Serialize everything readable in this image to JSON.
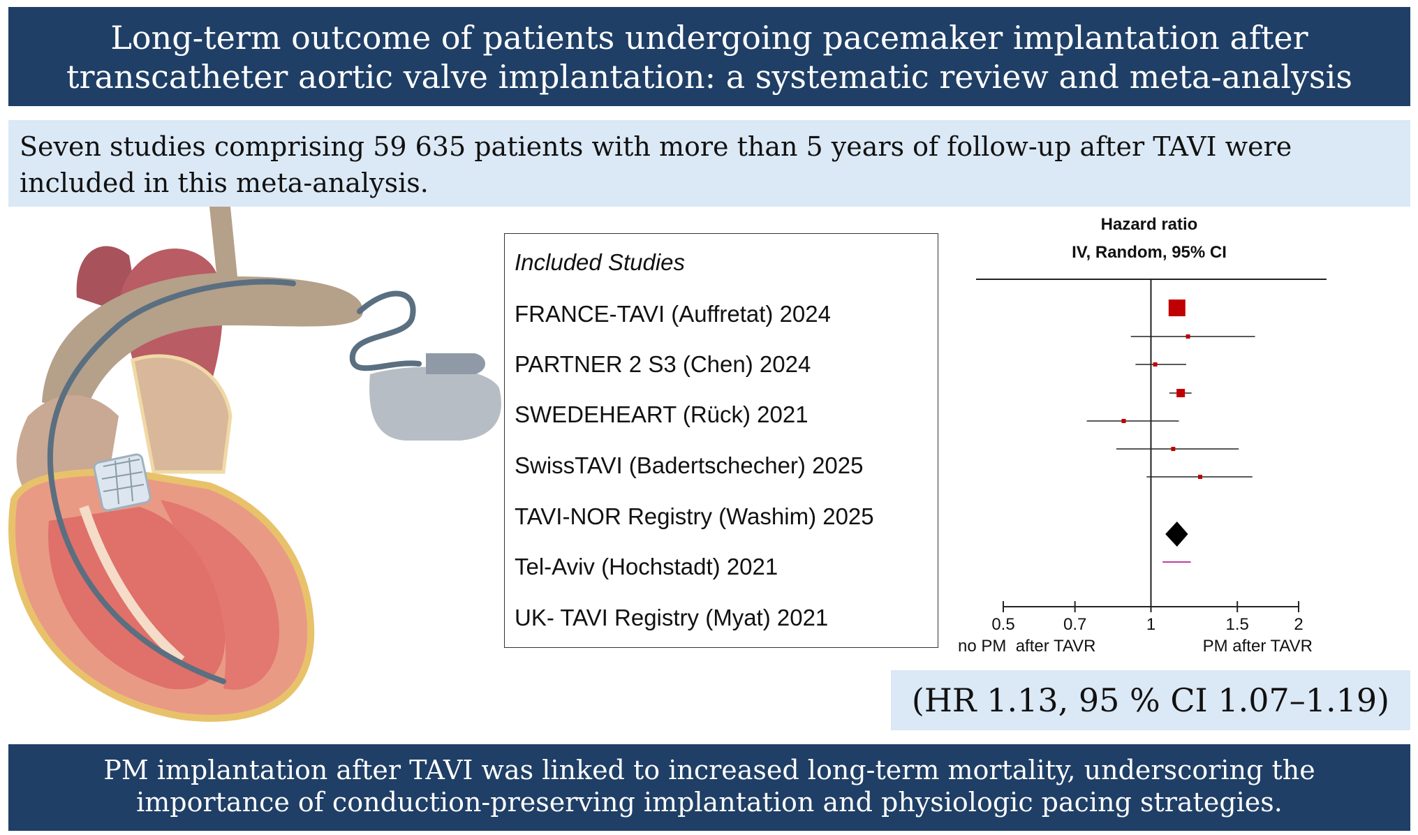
{
  "title": {
    "line1": "Long-term outcome of patients undergoing pacemaker implantation after",
    "line2": "transcatheter aortic valve implantation: a systematic review and meta-analysis"
  },
  "summary": {
    "line1": "Seven studies comprising 59 635 patients with more than 5 years of follow-up after TAVI were",
    "line2": "included in this meta-analysis."
  },
  "studies_header": "Included Studies",
  "studies": [
    "FRANCE-TAVI (Auffretat) 2024",
    "PARTNER 2 S3 (Chen) 2024",
    "SWEDEHEART (Rück) 2021",
    "SwissTAVI (Badertschecher) 2025",
    "TAVI-NOR Registry (Washim) 2025",
    "Tel-Aviv (Hochstadt) 2021",
    "UK- TAVI Registry (Myat) 2021"
  ],
  "chart_data": {
    "type": "forest",
    "title_line1": "Hazard ratio",
    "title_line2": "IV, Random, 95% CI",
    "xscale": "log",
    "xlim": [
      0.5,
      2
    ],
    "ticks": [
      0.5,
      0.7,
      1,
      1.5,
      2
    ],
    "tick_labels": [
      "0.5",
      "0.7",
      "1",
      "1.5",
      "2"
    ],
    "left_label": "no PM  after TAVR",
    "right_label": "PM after TAVR",
    "studies": [
      {
        "hr": 1.13,
        "lo": 1.13,
        "hi": 1.13,
        "weight": "large"
      },
      {
        "hr": 1.19,
        "lo": 0.91,
        "hi": 1.63,
        "weight": "small"
      },
      {
        "hr": 1.02,
        "lo": 0.93,
        "hi": 1.18,
        "weight": "small"
      },
      {
        "hr": 1.15,
        "lo": 1.09,
        "hi": 1.21,
        "weight": "medium"
      },
      {
        "hr": 0.88,
        "lo": 0.74,
        "hi": 1.14,
        "weight": "small"
      },
      {
        "hr": 1.11,
        "lo": 0.85,
        "hi": 1.51,
        "weight": "small"
      },
      {
        "hr": 1.26,
        "lo": 0.98,
        "hi": 1.61,
        "weight": "small"
      }
    ],
    "pooled": {
      "hr": 1.13,
      "lo": 1.07,
      "hi": 1.19
    },
    "colors": {
      "marker": "#c00000",
      "pooled": "#000000",
      "prediction": "#c0409a",
      "line": "#222222"
    }
  },
  "hr_result": "(HR 1.13, 95 % CI 1.07–1.19)",
  "conclusion": {
    "line1": "PM implantation after TAVI was linked to increased long-term mortality, underscoring the",
    "line2": "importance of conduction-preserving implantation and physiologic pacing strategies."
  }
}
